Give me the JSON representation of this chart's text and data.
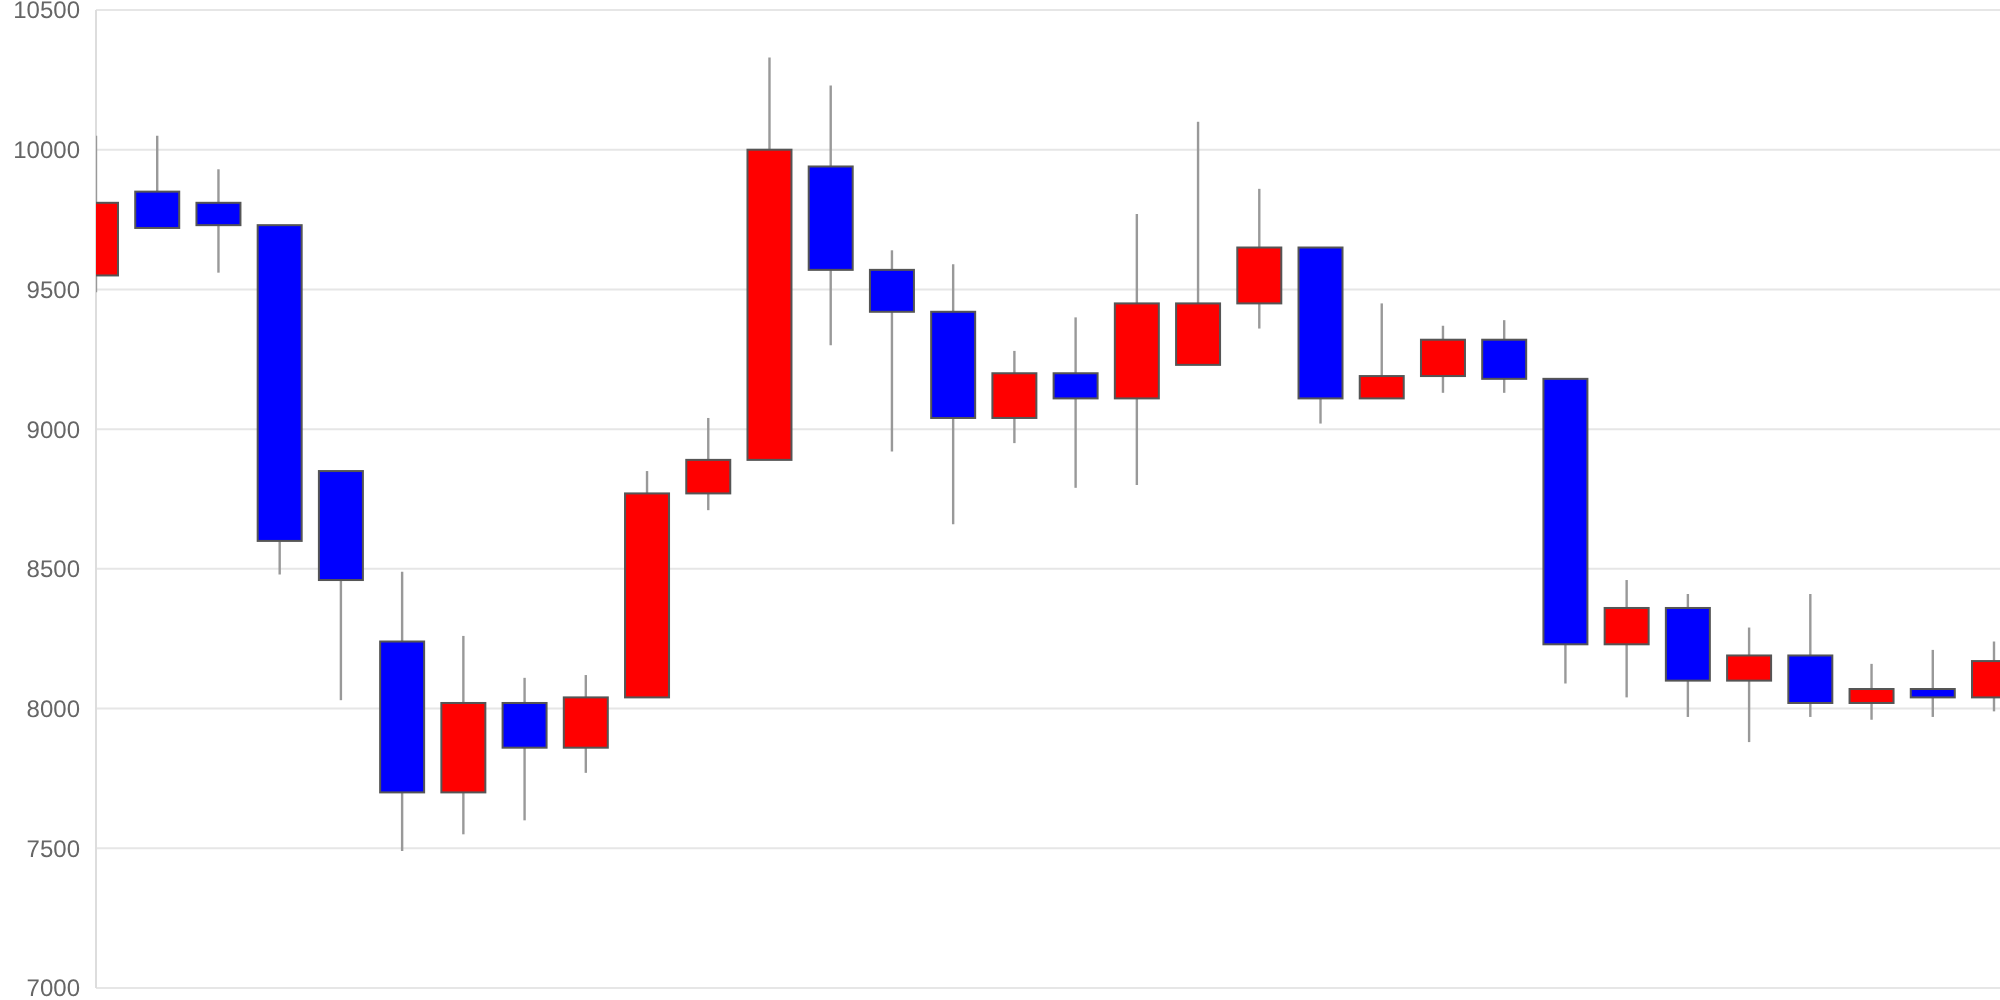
{
  "chart_data": {
    "type": "candlestick",
    "categories": [
      null,
      null,
      null,
      null,
      null,
      null,
      null,
      null,
      null,
      null,
      null,
      null,
      null,
      null,
      null,
      null,
      null,
      null,
      null,
      null,
      null,
      null,
      null,
      null,
      null,
      null,
      null,
      null,
      null,
      null,
      null,
      null
    ],
    "ohlc": [
      [
        9550,
        10050,
        9490,
        9810
      ],
      [
        9850,
        10050,
        9720,
        9720
      ],
      [
        9810,
        9930,
        9560,
        9730
      ],
      [
        9730,
        9730,
        8480,
        8600
      ],
      [
        8850,
        8850,
        8030,
        8460
      ],
      [
        8240,
        8490,
        7490,
        7700
      ],
      [
        7700,
        8260,
        7550,
        8020
      ],
      [
        8020,
        8110,
        7600,
        7860
      ],
      [
        7860,
        8120,
        7770,
        8040
      ],
      [
        8040,
        8850,
        8040,
        8770
      ],
      [
        8770,
        9040,
        8710,
        8890
      ],
      [
        8890,
        10330,
        8890,
        10000
      ],
      [
        9940,
        10230,
        9300,
        9570
      ],
      [
        9570,
        9640,
        8920,
        9420
      ],
      [
        9420,
        9590,
        8660,
        9040
      ],
      [
        9040,
        9280,
        8950,
        9200
      ],
      [
        9200,
        9400,
        8790,
        9110
      ],
      [
        9110,
        9770,
        8800,
        9450
      ],
      [
        9230,
        10100,
        9230,
        9450
      ],
      [
        9450,
        9860,
        9360,
        9650
      ],
      [
        9650,
        9650,
        9020,
        9110
      ],
      [
        9110,
        9450,
        9110,
        9190
      ],
      [
        9190,
        9370,
        9130,
        9320
      ],
      [
        9320,
        9390,
        9130,
        9180
      ],
      [
        9180,
        9180,
        8090,
        8230
      ],
      [
        8230,
        8460,
        8040,
        8360
      ],
      [
        8360,
        8410,
        7970,
        8100
      ],
      [
        8100,
        8290,
        7880,
        8190
      ],
      [
        8190,
        8410,
        7970,
        8020
      ],
      [
        8020,
        8160,
        7960,
        8070
      ],
      [
        8070,
        8210,
        7970,
        8040
      ],
      [
        8040,
        8240,
        7990,
        8170
      ]
    ],
    "colors": [
      "#ff0000",
      "#0000ff",
      "#0000ff",
      "#0000ff",
      "#0000ff",
      "#0000ff",
      "#ff0000",
      "#0000ff",
      "#ff0000",
      "#ff0000",
      "#ff0000",
      "#ff0000",
      "#0000ff",
      "#0000ff",
      "#0000ff",
      "#ff0000",
      "#0000ff",
      "#ff0000",
      "#ff0000",
      "#ff0000",
      "#0000ff",
      "#ff0000",
      "#ff0000",
      "#0000ff",
      "#0000ff",
      "#ff0000",
      "#0000ff",
      "#ff0000",
      "#0000ff",
      "#ff0000",
      "#0000ff",
      "#ff0000"
    ],
    "ylim": [
      7000,
      10500
    ],
    "yticks": [
      7000,
      7500,
      8000,
      8500,
      9000,
      9500,
      10000,
      10500
    ],
    "grid": "y",
    "tick_labels": "y"
  }
}
